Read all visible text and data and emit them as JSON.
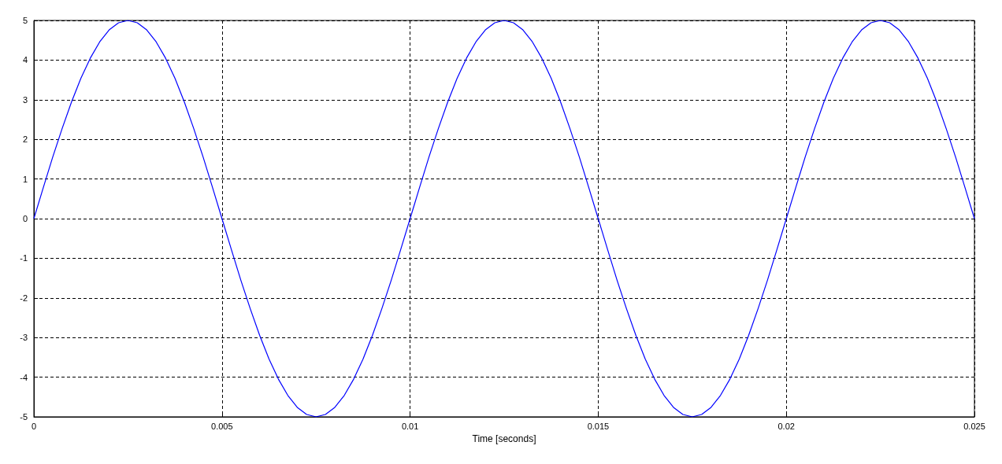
{
  "chart_data": {
    "type": "line",
    "xlabel": "Time [seconds]",
    "xlim": [
      0,
      0.025
    ],
    "xticks": [
      0,
      0.005,
      0.01,
      0.015,
      0.02,
      0.025
    ],
    "ylim": [
      -5,
      5
    ],
    "yticks": [
      -5,
      -4,
      -3,
      -2,
      -1,
      0,
      1,
      2,
      3,
      4,
      5
    ],
    "grid": true,
    "marker": "none",
    "line_style": "solid",
    "series": [
      {
        "color": "#0000ff",
        "x": [
          0,
          0.00025,
          0.0005,
          0.00075,
          0.001,
          0.00125,
          0.0015,
          0.00175,
          0.002,
          0.00225,
          0.0025,
          0.00275,
          0.003,
          0.00325,
          0.0035,
          0.00375,
          0.004,
          0.00425,
          0.0045,
          0.00475,
          0.005,
          0.00525,
          0.0055,
          0.00575,
          0.006,
          0.00625,
          0.0065,
          0.00675,
          0.007,
          0.00725,
          0.0075,
          0.00775,
          0.008,
          0.00825,
          0.0085,
          0.00875,
          0.009,
          0.00925,
          0.0095,
          0.00975,
          0.01,
          0.01025,
          0.0105,
          0.01075,
          0.011,
          0.01125,
          0.0115,
          0.01175,
          0.012,
          0.01225,
          0.0125,
          0.01275,
          0.013,
          0.01325,
          0.0135,
          0.01375,
          0.014,
          0.01425,
          0.0145,
          0.01475,
          0.015,
          0.01525,
          0.0155,
          0.01575,
          0.016,
          0.01625,
          0.0165,
          0.01675,
          0.017,
          0.01725,
          0.0175,
          0.01775,
          0.018,
          0.01825,
          0.0185,
          0.01875,
          0.019,
          0.01925,
          0.0195,
          0.01975,
          0.02,
          0.02025,
          0.0205,
          0.02075,
          0.021,
          0.02125,
          0.0215,
          0.02175,
          0.022,
          0.02225,
          0.0225,
          0.02275,
          0.023,
          0.02325,
          0.0235,
          0.02375,
          0.024,
          0.02425,
          0.0245,
          0.02475,
          0.025
        ],
        "values": [
          0,
          0.78,
          1.55,
          2.27,
          2.94,
          3.54,
          4.05,
          4.46,
          4.76,
          4.94,
          5,
          4.94,
          4.76,
          4.46,
          4.05,
          3.54,
          2.94,
          2.27,
          1.55,
          0.78,
          0,
          -0.78,
          -1.55,
          -2.27,
          -2.94,
          -3.54,
          -4.05,
          -4.46,
          -4.76,
          -4.94,
          -5,
          -4.94,
          -4.76,
          -4.46,
          -4.05,
          -3.54,
          -2.94,
          -2.27,
          -1.55,
          -0.78,
          0,
          0.78,
          1.55,
          2.27,
          2.94,
          3.54,
          4.05,
          4.46,
          4.76,
          4.94,
          5,
          4.94,
          4.76,
          4.46,
          4.05,
          3.54,
          2.94,
          2.27,
          1.55,
          0.78,
          0,
          -0.78,
          -1.55,
          -2.27,
          -2.94,
          -3.54,
          -4.05,
          -4.46,
          -4.76,
          -4.94,
          -5,
          -4.94,
          -4.76,
          -4.46,
          -4.05,
          -3.54,
          -2.94,
          -2.27,
          -1.55,
          -0.78,
          0,
          0.78,
          1.55,
          2.27,
          2.94,
          3.54,
          4.05,
          4.46,
          4.76,
          4.94,
          5,
          4.94,
          4.76,
          4.46,
          4.05,
          3.54,
          2.94,
          2.27,
          1.55,
          0.78,
          0
        ]
      }
    ]
  }
}
